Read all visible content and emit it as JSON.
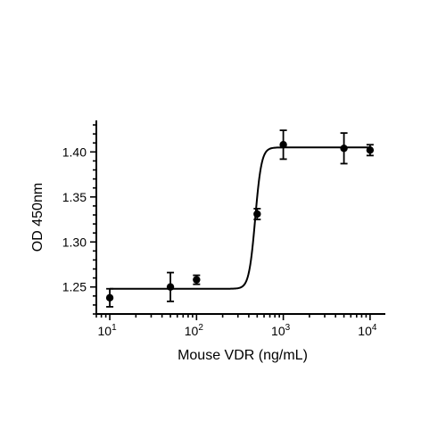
{
  "chart_data": {
    "type": "scatter",
    "x_scale": "log",
    "xlabel": "Mouse VDR (ng/mL)",
    "ylabel": "OD 450nm",
    "xlim": [
      7,
      15000
    ],
    "ylim": [
      1.22,
      1.435
    ],
    "x_ticks": [
      {
        "value": 10,
        "base": "10",
        "exp": "1"
      },
      {
        "value": 100,
        "base": "10",
        "exp": "2"
      },
      {
        "value": 1000,
        "base": "10",
        "exp": "3"
      },
      {
        "value": 10000,
        "base": "10",
        "exp": "4"
      }
    ],
    "y_ticks": [
      {
        "value": 1.25,
        "label": "1.25"
      },
      {
        "value": 1.3,
        "label": "1.30"
      },
      {
        "value": 1.35,
        "label": "1.35"
      },
      {
        "value": 1.4,
        "label": "1.40"
      }
    ],
    "grid": false,
    "series": [
      {
        "points": [
          {
            "x": 10,
            "y": 1.238,
            "err": 0.01
          },
          {
            "x": 50,
            "y": 1.25,
            "err": 0.016
          },
          {
            "x": 100,
            "y": 1.258,
            "err": 0.005
          },
          {
            "x": 500,
            "y": 1.331,
            "err": 0.006
          },
          {
            "x": 1000,
            "y": 1.408,
            "err": 0.016
          },
          {
            "x": 5000,
            "y": 1.404,
            "err": 0.017
          },
          {
            "x": 10000,
            "y": 1.402,
            "err": 0.006
          }
        ],
        "fit": {
          "model": "4PL",
          "bottom": 1.248,
          "top": 1.405,
          "ec50": 475,
          "hill": 12
        }
      }
    ]
  }
}
